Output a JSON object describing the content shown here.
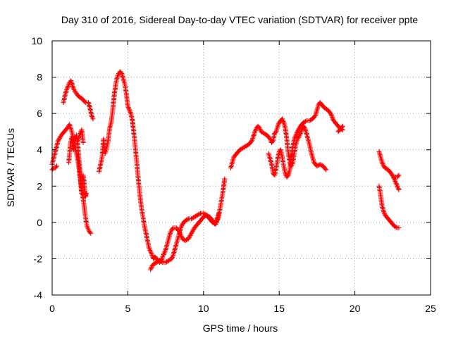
{
  "chart_data": {
    "type": "scatter",
    "title": "Day 310 of 2016, Sidereal Day-to-day VTEC variation (SDTVAR) for receiver ppte",
    "xlabel": "GPS time / hours",
    "ylabel": "SDTVAR / TECUs",
    "xlim": [
      0,
      25
    ],
    "ylim": [
      -4,
      10
    ],
    "xticks": [
      0,
      5,
      10,
      15,
      20,
      25
    ],
    "yticks": [
      -4,
      -2,
      0,
      2,
      4,
      6,
      8,
      10
    ],
    "grid": true,
    "marker": "+",
    "color": "#ff0000",
    "segments": [
      [
        [
          0.0,
          3.2
        ],
        [
          0.2,
          3.9
        ],
        [
          0.4,
          4.5
        ],
        [
          0.6,
          4.8
        ],
        [
          0.8,
          5.0
        ],
        [
          1.0,
          5.2
        ],
        [
          1.15,
          5.4
        ],
        [
          1.3,
          5.0
        ],
        [
          1.4,
          4.6
        ],
        [
          1.5,
          4.2
        ],
        [
          1.6,
          3.8
        ],
        [
          1.7,
          3.4
        ],
        [
          1.8,
          2.8
        ],
        [
          1.9,
          2.2
        ],
        [
          2.0,
          1.6
        ],
        [
          2.1,
          1.0
        ],
        [
          2.2,
          0.3
        ],
        [
          2.3,
          -0.2
        ],
        [
          2.45,
          -0.5
        ],
        [
          2.55,
          -0.6
        ]
      ],
      [
        [
          0.0,
          2.9
        ],
        [
          0.1,
          3.0
        ],
        [
          0.2,
          3.0
        ],
        [
          0.3,
          3.1
        ]
      ],
      [
        [
          0.75,
          6.6
        ],
        [
          0.85,
          7.0
        ],
        [
          0.95,
          7.3
        ],
        [
          1.05,
          7.5
        ],
        [
          1.15,
          7.7
        ],
        [
          1.25,
          7.8
        ],
        [
          1.35,
          7.5
        ],
        [
          1.45,
          7.3
        ],
        [
          1.6,
          7.1
        ],
        [
          1.8,
          6.9
        ],
        [
          2.0,
          6.8
        ],
        [
          2.2,
          6.6
        ],
        [
          2.4,
          6.6
        ],
        [
          2.5,
          6.3
        ],
        [
          2.6,
          5.9
        ],
        [
          2.7,
          5.7
        ]
      ],
      [
        [
          1.1,
          3.3
        ],
        [
          1.15,
          3.8
        ],
        [
          1.2,
          4.3
        ],
        [
          1.3,
          4.7
        ],
        [
          1.35,
          4.4
        ],
        [
          1.4,
          4.0
        ],
        [
          1.5,
          4.5
        ],
        [
          1.6,
          4.8
        ],
        [
          1.7,
          4.2
        ],
        [
          1.75,
          3.6
        ],
        [
          1.8,
          3.2
        ],
        [
          1.85,
          2.6
        ],
        [
          1.9,
          2.0
        ],
        [
          1.95,
          1.6
        ],
        [
          2.0,
          2.0
        ],
        [
          2.05,
          2.6
        ],
        [
          2.1,
          2.3
        ],
        [
          2.15,
          1.9
        ],
        [
          2.2,
          1.4
        ],
        [
          2.25,
          1.6
        ]
      ],
      [
        [
          1.7,
          4.5
        ],
        [
          1.85,
          4.9
        ],
        [
          1.95,
          5.1
        ],
        [
          2.0,
          4.8
        ],
        [
          2.05,
          4.4
        ]
      ],
      [
        [
          3.1,
          2.8
        ],
        [
          3.2,
          3.2
        ],
        [
          3.3,
          3.6
        ],
        [
          3.4,
          4.6
        ],
        [
          3.5,
          3.8
        ],
        [
          3.6,
          4.1
        ],
        [
          3.7,
          4.5
        ],
        [
          3.8,
          5.2
        ],
        [
          3.9,
          5.5
        ],
        [
          4.0,
          6.2
        ],
        [
          4.1,
          7.0
        ],
        [
          4.2,
          7.6
        ],
        [
          4.3,
          8.0
        ],
        [
          4.4,
          8.2
        ],
        [
          4.5,
          8.3
        ],
        [
          4.6,
          8.2
        ],
        [
          4.7,
          7.9
        ],
        [
          4.8,
          7.6
        ],
        [
          4.9,
          7.1
        ],
        [
          5.0,
          6.4
        ],
        [
          5.1,
          6.2
        ],
        [
          5.2,
          6.0
        ],
        [
          5.3,
          5.6
        ],
        [
          5.4,
          4.9
        ],
        [
          5.5,
          4.1
        ],
        [
          5.6,
          3.2
        ],
        [
          5.7,
          2.3
        ],
        [
          5.8,
          1.5
        ],
        [
          5.9,
          0.8
        ],
        [
          6.0,
          0.3
        ],
        [
          6.1,
          -0.2
        ],
        [
          6.2,
          -0.6
        ],
        [
          6.3,
          -1.0
        ],
        [
          6.4,
          -1.4
        ],
        [
          6.5,
          -1.6
        ],
        [
          6.6,
          -1.8
        ],
        [
          6.7,
          -2.0
        ],
        [
          6.8,
          -1.9
        ],
        [
          6.9,
          -2.0
        ],
        [
          7.0,
          -2.1
        ],
        [
          7.1,
          -2.2
        ],
        [
          7.2,
          -2.1
        ],
        [
          7.3,
          -1.9
        ],
        [
          7.4,
          -1.7
        ],
        [
          7.5,
          -1.5
        ],
        [
          7.6,
          -1.2
        ],
        [
          7.7,
          -0.9
        ],
        [
          7.8,
          -0.6
        ],
        [
          7.9,
          -0.4
        ],
        [
          8.0,
          -0.3
        ],
        [
          8.2,
          -0.3
        ],
        [
          8.4,
          -0.5
        ],
        [
          8.6,
          -0.9
        ],
        [
          8.8,
          -1.0
        ],
        [
          9.0,
          -0.9
        ],
        [
          9.2,
          -0.6
        ],
        [
          9.4,
          -0.3
        ],
        [
          9.6,
          -0.1
        ],
        [
          9.8,
          0.1
        ],
        [
          10.0,
          0.3
        ],
        [
          10.2,
          0.4
        ],
        [
          10.4,
          0.2
        ],
        [
          10.6,
          0.0
        ],
        [
          10.8,
          -0.1
        ],
        [
          11.0,
          0.3
        ],
        [
          11.1,
          0.8
        ],
        [
          11.2,
          1.3
        ],
        [
          11.3,
          1.8
        ],
        [
          11.4,
          2.4
        ]
      ],
      [
        [
          6.5,
          -2.6
        ],
        [
          6.6,
          -2.4
        ],
        [
          6.7,
          -2.3
        ],
        [
          6.9,
          -2.2
        ],
        [
          7.1,
          -2.1
        ],
        [
          7.3,
          -2.2
        ],
        [
          7.5,
          -2.2
        ],
        [
          7.7,
          -2.1
        ],
        [
          7.9,
          -2.0
        ],
        [
          8.0,
          -1.8
        ],
        [
          8.1,
          -1.5
        ],
        [
          8.2,
          -1.2
        ],
        [
          8.3,
          -0.9
        ],
        [
          8.4,
          -0.6
        ],
        [
          8.5,
          -0.3
        ],
        [
          8.6,
          -0.1
        ],
        [
          8.8,
          0.1
        ],
        [
          9.0,
          0.2
        ],
        [
          9.2,
          0.2
        ],
        [
          9.4,
          0.3
        ],
        [
          9.6,
          0.4
        ],
        [
          9.8,
          0.5
        ],
        [
          10.0,
          0.5
        ],
        [
          10.2,
          0.4
        ],
        [
          10.4,
          0.3
        ],
        [
          10.6,
          0.1
        ],
        [
          10.8,
          -0.1
        ],
        [
          11.0,
          0.5
        ]
      ],
      [
        [
          11.8,
          3.0
        ],
        [
          11.9,
          3.3
        ],
        [
          12.0,
          3.6
        ],
        [
          12.2,
          3.8
        ],
        [
          12.4,
          4.0
        ],
        [
          12.6,
          4.1
        ],
        [
          12.8,
          4.2
        ],
        [
          13.0,
          4.3
        ],
        [
          13.2,
          4.5
        ],
        [
          13.4,
          5.0
        ],
        [
          13.5,
          5.2
        ],
        [
          13.6,
          5.3
        ],
        [
          13.7,
          5.2
        ],
        [
          13.8,
          5.0
        ],
        [
          14.0,
          4.9
        ],
        [
          14.2,
          4.8
        ],
        [
          14.4,
          4.6
        ],
        [
          14.5,
          4.4
        ],
        [
          14.6,
          4.5
        ],
        [
          14.7,
          4.9
        ],
        [
          14.8,
          5.0
        ],
        [
          14.9,
          5.3
        ],
        [
          15.0,
          5.5
        ],
        [
          15.1,
          5.6
        ],
        [
          15.2,
          5.7
        ],
        [
          15.3,
          5.5
        ],
        [
          15.4,
          5.2
        ],
        [
          15.5,
          4.6
        ],
        [
          15.6,
          3.8
        ],
        [
          15.7,
          3.3
        ],
        [
          15.8,
          3.1
        ],
        [
          15.9,
          3.3
        ],
        [
          16.0,
          3.8
        ],
        [
          16.1,
          4.3
        ],
        [
          16.2,
          4.6
        ],
        [
          16.3,
          4.7
        ],
        [
          16.4,
          4.9
        ],
        [
          16.5,
          5.1
        ],
        [
          16.6,
          5.3
        ],
        [
          16.7,
          5.2
        ],
        [
          16.8,
          4.9
        ],
        [
          16.9,
          4.6
        ],
        [
          17.0,
          4.3
        ],
        [
          17.1,
          3.9
        ],
        [
          17.2,
          3.6
        ],
        [
          17.3,
          3.3
        ],
        [
          17.5,
          3.1
        ],
        [
          17.7,
          3.2
        ],
        [
          17.9,
          3.1
        ],
        [
          18.1,
          2.9
        ]
      ],
      [
        [
          14.3,
          3.8
        ],
        [
          14.4,
          3.5
        ],
        [
          14.5,
          3.2
        ],
        [
          14.6,
          2.7
        ],
        [
          14.7,
          2.6
        ],
        [
          14.8,
          3.0
        ],
        [
          14.9,
          3.5
        ],
        [
          15.0,
          3.9
        ],
        [
          15.1,
          4.0
        ],
        [
          15.2,
          3.6
        ],
        [
          15.3,
          3.1
        ],
        [
          15.4,
          2.7
        ],
        [
          15.5,
          2.5
        ],
        [
          15.6,
          2.6
        ],
        [
          15.7,
          2.9
        ],
        [
          15.8,
          3.6
        ],
        [
          15.9,
          4.2
        ],
        [
          16.0,
          4.6
        ],
        [
          16.2,
          5.0
        ],
        [
          16.4,
          5.3
        ],
        [
          16.6,
          5.5
        ],
        [
          16.8,
          5.6
        ],
        [
          17.0,
          5.6
        ],
        [
          17.2,
          5.7
        ],
        [
          17.4,
          5.9
        ],
        [
          17.5,
          6.2
        ],
        [
          17.6,
          6.5
        ],
        [
          17.7,
          6.6
        ],
        [
          17.8,
          6.5
        ],
        [
          17.9,
          6.4
        ],
        [
          18.0,
          6.3
        ],
        [
          18.2,
          6.2
        ],
        [
          18.4,
          6.0
        ],
        [
          18.6,
          5.6
        ],
        [
          18.8,
          5.4
        ],
        [
          19.0,
          5.2
        ],
        [
          19.2,
          5.1
        ]
      ],
      [
        [
          18.9,
          5.0
        ],
        [
          19.0,
          5.1
        ],
        [
          19.1,
          5.2
        ],
        [
          19.2,
          5.3
        ]
      ],
      [
        [
          21.6,
          3.9
        ],
        [
          21.7,
          3.6
        ],
        [
          21.8,
          3.3
        ],
        [
          21.9,
          3.1
        ],
        [
          22.0,
          3.0
        ],
        [
          22.2,
          2.9
        ],
        [
          22.4,
          2.7
        ],
        [
          22.6,
          2.4
        ],
        [
          22.8,
          2.0
        ],
        [
          22.9,
          1.8
        ]
      ],
      [
        [
          21.6,
          2.0
        ],
        [
          21.7,
          1.5
        ],
        [
          21.8,
          0.9
        ],
        [
          21.9,
          0.6
        ],
        [
          22.0,
          0.4
        ],
        [
          22.2,
          0.2
        ],
        [
          22.4,
          0.0
        ],
        [
          22.6,
          -0.2
        ],
        [
          22.8,
          -0.3
        ],
        [
          22.9,
          -0.3
        ]
      ],
      [
        [
          22.6,
          2.5
        ],
        [
          22.8,
          2.5
        ],
        [
          22.9,
          2.6
        ]
      ]
    ]
  }
}
